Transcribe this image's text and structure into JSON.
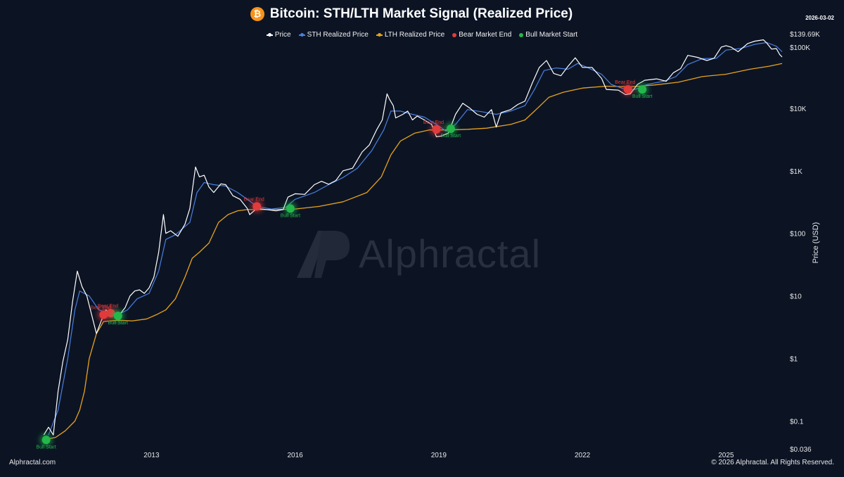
{
  "header": {
    "icon": "bitcoin-icon",
    "title": "Bitcoin: STH/LTH Market Signal (Realized Price)",
    "date": "2026-03-02"
  },
  "footer": {
    "left": "Alphractal.com",
    "right": "© 2026 Alphractal. All Rights Reserved."
  },
  "watermark": {
    "text": "Alphractal"
  },
  "colors": {
    "background": "#0c1424",
    "price": "#ffffff",
    "sth": "#4a7fe0",
    "lth": "#e8a21c",
    "bear": "#e23b3b",
    "bull": "#22b84a"
  },
  "chart_data": {
    "type": "line",
    "title": "Bitcoin: STH/LTH Market Signal (Realized Price)",
    "ylabel": "Price (USD)",
    "yscale": "log",
    "ylim": [
      0.036,
      139690
    ],
    "xlim": [
      2010.6,
      2026.17
    ],
    "grid": false,
    "legend_position": "top-center",
    "x_ticks": [
      {
        "value": 2013,
        "label": "2013"
      },
      {
        "value": 2016,
        "label": "2016"
      },
      {
        "value": 2019,
        "label": "2019"
      },
      {
        "value": 2022,
        "label": "2022"
      },
      {
        "value": 2025,
        "label": "2025"
      }
    ],
    "y_ticks": [
      {
        "value": 0.036,
        "label": "$0.036"
      },
      {
        "value": 0.1,
        "label": "$0.1"
      },
      {
        "value": 1,
        "label": "$1"
      },
      {
        "value": 10,
        "label": "$10"
      },
      {
        "value": 100,
        "label": "$100"
      },
      {
        "value": 1000,
        "label": "$1K"
      },
      {
        "value": 10000,
        "label": "$10K"
      },
      {
        "value": 100000,
        "label": "$100K"
      },
      {
        "value": 139690,
        "label": "$139.69K"
      }
    ],
    "series": [
      {
        "name": "Price",
        "color": "#ffffff",
        "points": [
          [
            2010.75,
            0.06
          ],
          [
            2010.85,
            0.08
          ],
          [
            2010.95,
            0.06
          ],
          [
            2011.05,
            0.3
          ],
          [
            2011.15,
            0.9
          ],
          [
            2011.25,
            2.0
          ],
          [
            2011.35,
            8.0
          ],
          [
            2011.45,
            25.0
          ],
          [
            2011.55,
            14.0
          ],
          [
            2011.65,
            10.0
          ],
          [
            2011.75,
            5.0
          ],
          [
            2011.85,
            2.5
          ],
          [
            2011.95,
            4.0
          ],
          [
            2012.05,
            6.0
          ],
          [
            2012.15,
            5.0
          ],
          [
            2012.25,
            5.0
          ],
          [
            2012.35,
            5.2
          ],
          [
            2012.45,
            6.5
          ],
          [
            2012.55,
            10.0
          ],
          [
            2012.65,
            12.0
          ],
          [
            2012.75,
            12.5
          ],
          [
            2012.85,
            11.0
          ],
          [
            2012.95,
            13.5
          ],
          [
            2013.05,
            20.0
          ],
          [
            2013.15,
            50.0
          ],
          [
            2013.25,
            200.0
          ],
          [
            2013.3,
            100.0
          ],
          [
            2013.4,
            110.0
          ],
          [
            2013.55,
            90.0
          ],
          [
            2013.7,
            140.0
          ],
          [
            2013.8,
            250.0
          ],
          [
            2013.92,
            1150.0
          ],
          [
            2014.0,
            800.0
          ],
          [
            2014.1,
            850.0
          ],
          [
            2014.2,
            550.0
          ],
          [
            2014.3,
            450.0
          ],
          [
            2014.45,
            620.0
          ],
          [
            2014.55,
            600.0
          ],
          [
            2014.7,
            400.0
          ],
          [
            2014.85,
            350.0
          ],
          [
            2015.0,
            250.0
          ],
          [
            2015.05,
            200.0
          ],
          [
            2015.2,
            250.0
          ],
          [
            2015.4,
            240.0
          ],
          [
            2015.6,
            230.0
          ],
          [
            2015.75,
            240.0
          ],
          [
            2015.85,
            380.0
          ],
          [
            2016.0,
            430.0
          ],
          [
            2016.2,
            420.0
          ],
          [
            2016.4,
            600.0
          ],
          [
            2016.55,
            680.0
          ],
          [
            2016.7,
            610.0
          ],
          [
            2016.85,
            700.0
          ],
          [
            2017.0,
            1000.0
          ],
          [
            2017.2,
            1100.0
          ],
          [
            2017.4,
            2000.0
          ],
          [
            2017.55,
            2600.0
          ],
          [
            2017.7,
            4500.0
          ],
          [
            2017.82,
            6500.0
          ],
          [
            2017.92,
            17000.0
          ],
          [
            2017.97,
            14000.0
          ],
          [
            2018.05,
            11000.0
          ],
          [
            2018.1,
            7000.0
          ],
          [
            2018.25,
            8000.0
          ],
          [
            2018.35,
            9000.0
          ],
          [
            2018.45,
            6500.0
          ],
          [
            2018.55,
            7500.0
          ],
          [
            2018.7,
            6500.0
          ],
          [
            2018.85,
            5500.0
          ],
          [
            2018.95,
            3500.0
          ],
          [
            2019.05,
            3600.0
          ],
          [
            2019.2,
            4000.0
          ],
          [
            2019.35,
            8000.0
          ],
          [
            2019.5,
            12000.0
          ],
          [
            2019.65,
            10000.0
          ],
          [
            2019.8,
            8000.0
          ],
          [
            2019.95,
            7200.0
          ],
          [
            2020.1,
            9500.0
          ],
          [
            2020.2,
            5000.0
          ],
          [
            2020.3,
            8500.0
          ],
          [
            2020.5,
            9500.0
          ],
          [
            2020.65,
            11500.0
          ],
          [
            2020.8,
            13000.0
          ],
          [
            2020.95,
            25000.0
          ],
          [
            2021.1,
            45000.0
          ],
          [
            2021.25,
            58000.0
          ],
          [
            2021.4,
            36000.0
          ],
          [
            2021.55,
            33000.0
          ],
          [
            2021.7,
            47000.0
          ],
          [
            2021.85,
            64000.0
          ],
          [
            2022.0,
            45000.0
          ],
          [
            2022.2,
            45000.0
          ],
          [
            2022.4,
            30000.0
          ],
          [
            2022.5,
            20000.0
          ],
          [
            2022.75,
            19500.0
          ],
          [
            2022.9,
            16500.0
          ],
          [
            2023.0,
            17000.0
          ],
          [
            2023.15,
            24000.0
          ],
          [
            2023.3,
            28000.0
          ],
          [
            2023.55,
            29500.0
          ],
          [
            2023.75,
            27000.0
          ],
          [
            2023.9,
            37000.0
          ],
          [
            2024.05,
            43000.0
          ],
          [
            2024.2,
            70000.0
          ],
          [
            2024.4,
            65000.0
          ],
          [
            2024.6,
            58000.0
          ],
          [
            2024.75,
            63000.0
          ],
          [
            2024.9,
            95000.0
          ],
          [
            2025.0,
            100000.0
          ],
          [
            2025.1,
            95000.0
          ],
          [
            2025.25,
            80000.0
          ],
          [
            2025.45,
            108000.0
          ],
          [
            2025.6,
            118000.0
          ],
          [
            2025.78,
            124000.0
          ],
          [
            2025.85,
            110000.0
          ],
          [
            2025.95,
            88000.0
          ],
          [
            2026.05,
            90000.0
          ],
          [
            2026.12,
            72000.0
          ],
          [
            2026.17,
            66000.0
          ]
        ]
      },
      {
        "name": "STH Realized Price",
        "color": "#4a7fe0",
        "points": [
          [
            2010.85,
            0.06
          ],
          [
            2011.05,
            0.15
          ],
          [
            2011.25,
            1.0
          ],
          [
            2011.4,
            6.0
          ],
          [
            2011.5,
            12.0
          ],
          [
            2011.7,
            10.0
          ],
          [
            2011.9,
            6.0
          ],
          [
            2012.05,
            5.5
          ],
          [
            2012.3,
            5.0
          ],
          [
            2012.5,
            6.0
          ],
          [
            2012.7,
            9.0
          ],
          [
            2012.95,
            11.0
          ],
          [
            2013.15,
            25.0
          ],
          [
            2013.3,
            80.0
          ],
          [
            2013.5,
            95.0
          ],
          [
            2013.8,
            150.0
          ],
          [
            2013.95,
            450.0
          ],
          [
            2014.1,
            650.0
          ],
          [
            2014.3,
            600.0
          ],
          [
            2014.55,
            570.0
          ],
          [
            2014.8,
            450.0
          ],
          [
            2015.0,
            350.0
          ],
          [
            2015.2,
            270.0
          ],
          [
            2015.5,
            245.0
          ],
          [
            2015.8,
            260.0
          ],
          [
            2016.0,
            350.0
          ],
          [
            2016.4,
            450.0
          ],
          [
            2016.7,
            600.0
          ],
          [
            2017.0,
            780.0
          ],
          [
            2017.3,
            1100.0
          ],
          [
            2017.6,
            2100.0
          ],
          [
            2017.85,
            4500.0
          ],
          [
            2018.0,
            9000.0
          ],
          [
            2018.2,
            9000.0
          ],
          [
            2018.45,
            8000.0
          ],
          [
            2018.7,
            7200.0
          ],
          [
            2018.95,
            5500.0
          ],
          [
            2019.15,
            4300.0
          ],
          [
            2019.35,
            5500.0
          ],
          [
            2019.6,
            9500.0
          ],
          [
            2019.9,
            8800.0
          ],
          [
            2020.2,
            8000.0
          ],
          [
            2020.5,
            9000.0
          ],
          [
            2020.8,
            11000.0
          ],
          [
            2021.0,
            20000.0
          ],
          [
            2021.2,
            40000.0
          ],
          [
            2021.45,
            44000.0
          ],
          [
            2021.7,
            42000.0
          ],
          [
            2021.9,
            52000.0
          ],
          [
            2022.1,
            45000.0
          ],
          [
            2022.4,
            35000.0
          ],
          [
            2022.6,
            24000.0
          ],
          [
            2022.9,
            20000.0
          ],
          [
            2023.1,
            20000.0
          ],
          [
            2023.35,
            24000.0
          ],
          [
            2023.7,
            27000.0
          ],
          [
            2023.95,
            32000.0
          ],
          [
            2024.2,
            50000.0
          ],
          [
            2024.5,
            62000.0
          ],
          [
            2024.8,
            63000.0
          ],
          [
            2025.0,
            85000.0
          ],
          [
            2025.3,
            90000.0
          ],
          [
            2025.6,
            105000.0
          ],
          [
            2025.85,
            112000.0
          ],
          [
            2026.05,
            98000.0
          ],
          [
            2026.17,
            80000.0
          ]
        ]
      },
      {
        "name": "LTH Realized Price",
        "color": "#e8a21c",
        "points": [
          [
            2010.75,
            0.05
          ],
          [
            2011.0,
            0.055
          ],
          [
            2011.2,
            0.07
          ],
          [
            2011.4,
            0.1
          ],
          [
            2011.5,
            0.15
          ],
          [
            2011.6,
            0.3
          ],
          [
            2011.7,
            1.0
          ],
          [
            2011.85,
            2.5
          ],
          [
            2012.0,
            3.9
          ],
          [
            2012.3,
            4.1
          ],
          [
            2012.6,
            4.0
          ],
          [
            2012.9,
            4.3
          ],
          [
            2013.1,
            5.0
          ],
          [
            2013.3,
            6.0
          ],
          [
            2013.5,
            9.0
          ],
          [
            2013.7,
            20.0
          ],
          [
            2013.85,
            40.0
          ],
          [
            2014.0,
            50.0
          ],
          [
            2014.2,
            70.0
          ],
          [
            2014.4,
            150.0
          ],
          [
            2014.6,
            200.0
          ],
          [
            2014.8,
            230.0
          ],
          [
            2015.0,
            240.0
          ],
          [
            2015.5,
            240.0
          ],
          [
            2016.0,
            245.0
          ],
          [
            2016.5,
            270.0
          ],
          [
            2017.0,
            320.0
          ],
          [
            2017.5,
            450.0
          ],
          [
            2017.8,
            800.0
          ],
          [
            2018.0,
            1800.0
          ],
          [
            2018.2,
            3000.0
          ],
          [
            2018.5,
            4000.0
          ],
          [
            2018.8,
            4500.0
          ],
          [
            2019.2,
            4500.0
          ],
          [
            2019.6,
            4600.0
          ],
          [
            2020.0,
            4800.0
          ],
          [
            2020.5,
            5500.0
          ],
          [
            2020.8,
            6500.0
          ],
          [
            2021.0,
            9000.0
          ],
          [
            2021.3,
            15000.0
          ],
          [
            2021.6,
            18000.0
          ],
          [
            2022.0,
            21000.0
          ],
          [
            2022.5,
            22500.0
          ],
          [
            2023.0,
            22000.0
          ],
          [
            2023.5,
            23500.0
          ],
          [
            2024.0,
            26000.0
          ],
          [
            2024.5,
            32000.0
          ],
          [
            2025.0,
            35000.0
          ],
          [
            2025.5,
            42000.0
          ],
          [
            2025.9,
            47000.0
          ],
          [
            2026.17,
            52000.0
          ]
        ]
      }
    ],
    "markers": [
      {
        "type": "Bear Market End",
        "label": "Bear End",
        "x": 2012.0,
        "y": 5.0
      },
      {
        "type": "Bear Market End",
        "label": "Bear End",
        "x": 2012.15,
        "y": 5.3
      },
      {
        "type": "Bear Market End",
        "label": "Bear End",
        "x": 2015.2,
        "y": 270
      },
      {
        "type": "Bear Market End",
        "label": "Bear End",
        "x": 2018.95,
        "y": 4600
      },
      {
        "type": "Bear Market End",
        "label": "Bear End",
        "x": 2022.95,
        "y": 20000
      },
      {
        "type": "Bull Market Start",
        "label": "Bull Start",
        "x": 2010.8,
        "y": 0.05
      },
      {
        "type": "Bull Market Start",
        "label": "Bull Start",
        "x": 2012.3,
        "y": 4.8
      },
      {
        "type": "Bull Market Start",
        "label": "Bull Start",
        "x": 2015.9,
        "y": 250
      },
      {
        "type": "Bull Market Start",
        "label": "Bull Start",
        "x": 2019.25,
        "y": 4700
      },
      {
        "type": "Bull Market Start",
        "label": "Bull Start",
        "x": 2023.25,
        "y": 20000
      }
    ]
  }
}
